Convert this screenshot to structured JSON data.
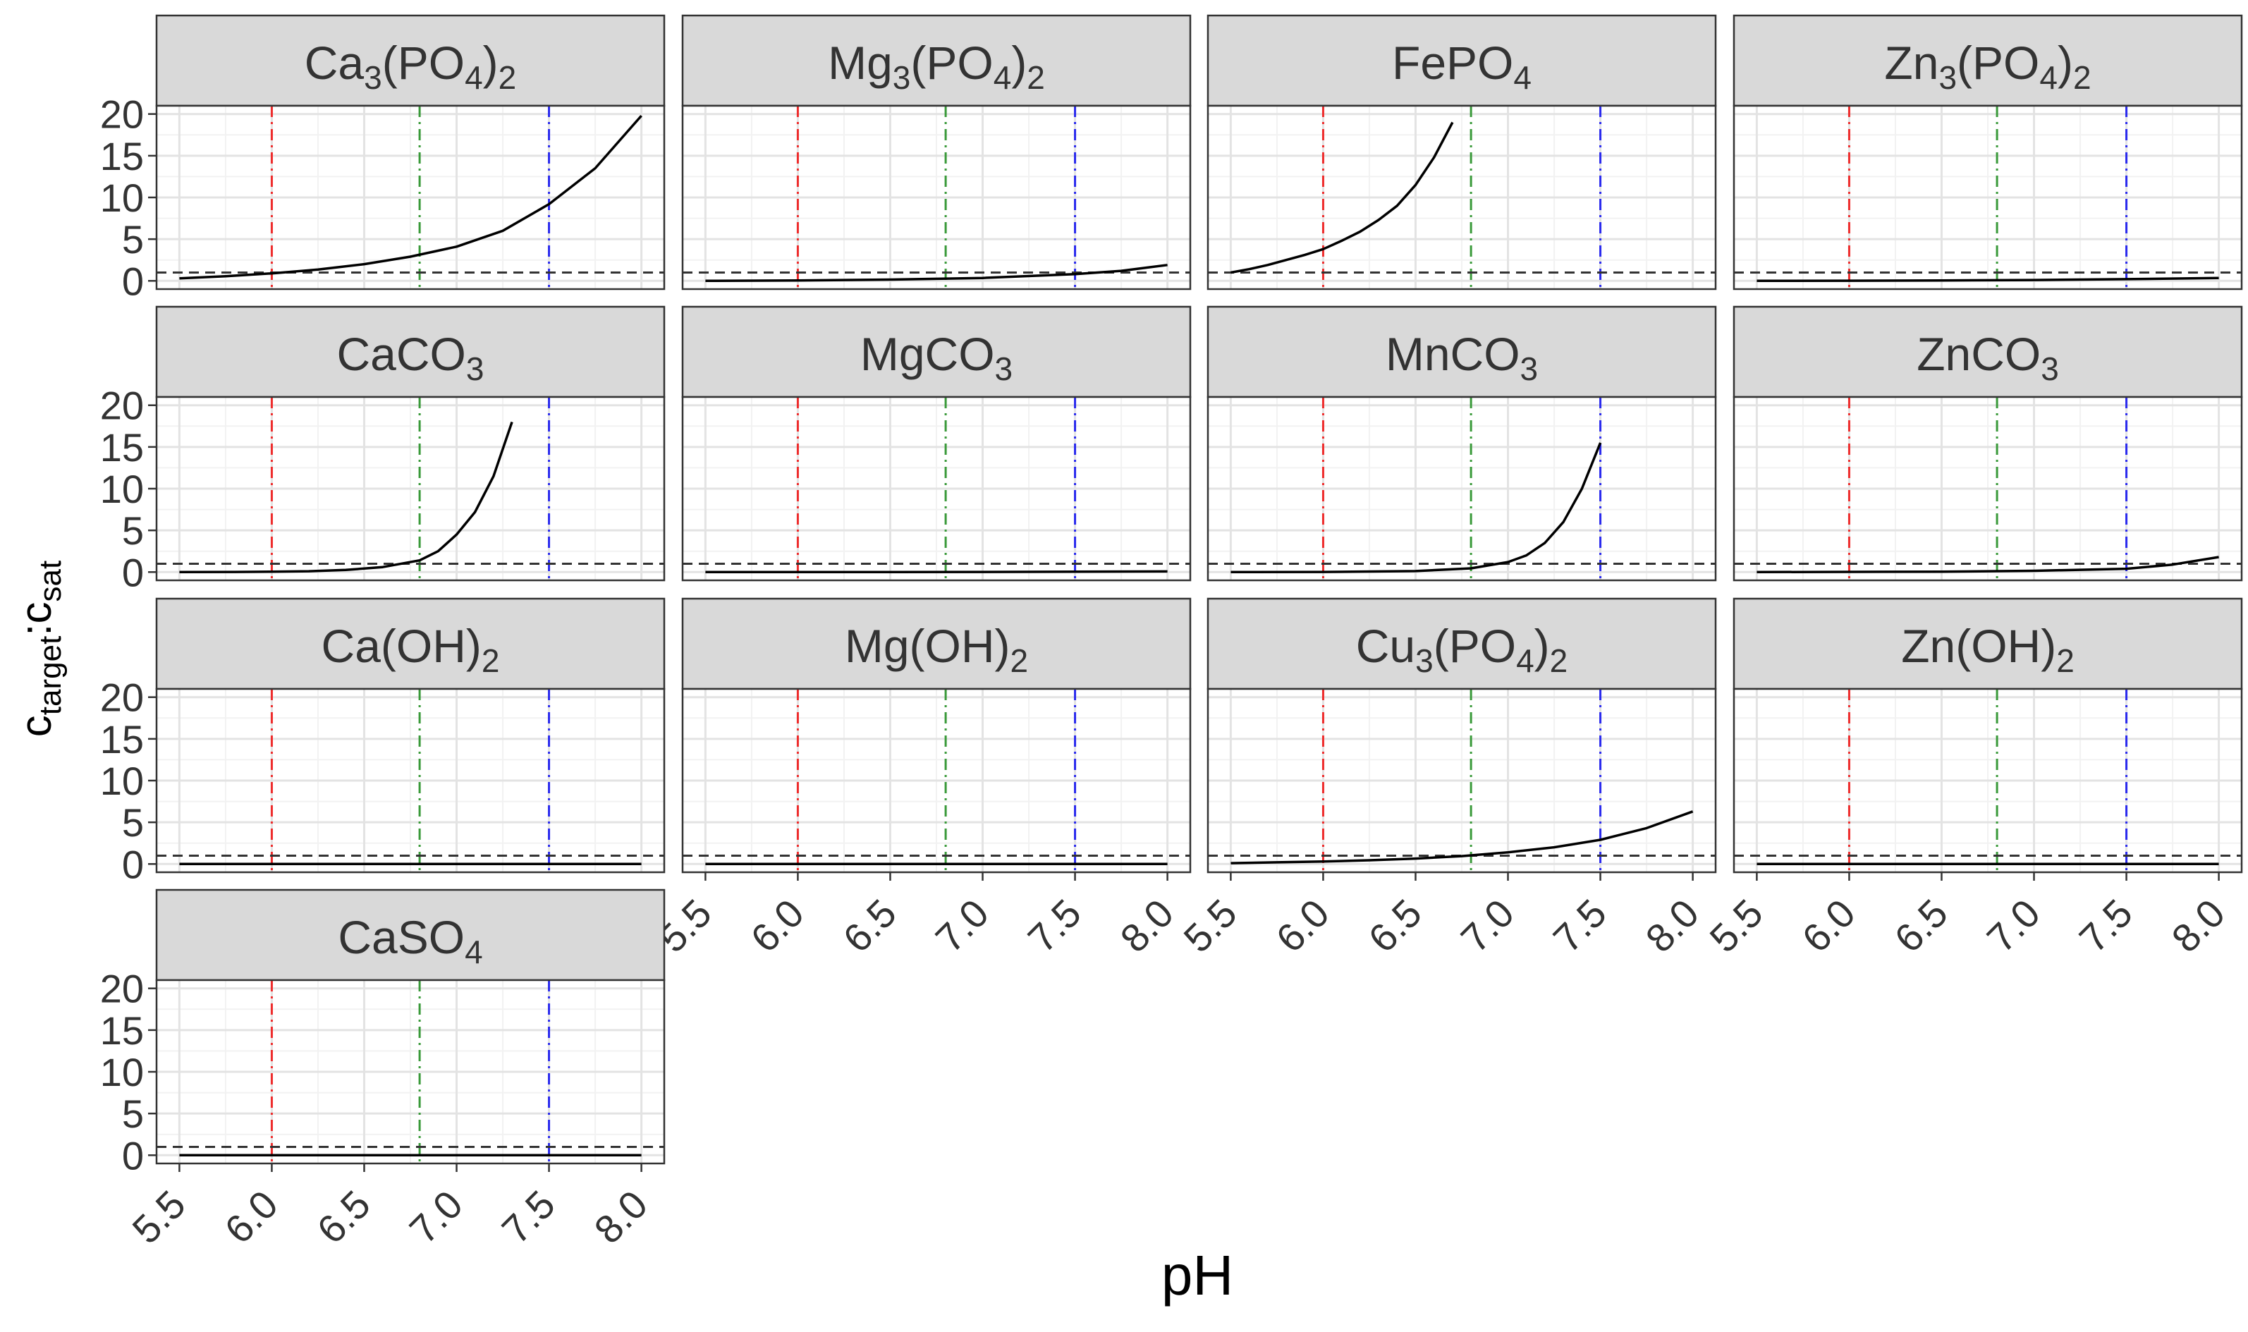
{
  "chart_data": {
    "type": "line",
    "layout": "facet-grid",
    "xlabel": "pH",
    "ylabel": {
      "main": "c",
      "sub1": "target",
      "sep": ":",
      "main2": "c",
      "sub2": "sat"
    },
    "xlim": [
      5.5,
      8.0
    ],
    "ylim": [
      0,
      20
    ],
    "xticks": [
      "5.5",
      "6.0",
      "6.5",
      "7.0",
      "7.5",
      "8.0"
    ],
    "yticks": [
      "0",
      "5",
      "10",
      "15",
      "20"
    ],
    "grid": true,
    "reference_line_y": 1,
    "vertical_lines": [
      {
        "x": 6.0,
        "color": "#ee2c2c"
      },
      {
        "x": 6.8,
        "color": "#3a9a3a"
      },
      {
        "x": 7.5,
        "color": "#2a2aee"
      }
    ],
    "line_color": "#000000",
    "facets": [
      {
        "title": [
          {
            "t": "Ca"
          },
          {
            "t": "3",
            "sub": true
          },
          {
            "t": "(PO"
          },
          {
            "t": "4",
            "sub": true
          },
          {
            "t": ")"
          },
          {
            "t": "2",
            "sub": true
          }
        ],
        "x": [
          5.5,
          5.75,
          6.0,
          6.25,
          6.5,
          6.75,
          7.0,
          7.25,
          7.5,
          7.75,
          8.0
        ],
        "y": [
          0.3,
          0.55,
          0.9,
          1.35,
          2.0,
          2.9,
          4.1,
          6.0,
          9.2,
          13.5,
          19.8
        ]
      },
      {
        "title": [
          {
            "t": "Mg"
          },
          {
            "t": "3",
            "sub": true
          },
          {
            "t": "(PO"
          },
          {
            "t": "4",
            "sub": true
          },
          {
            "t": ")"
          },
          {
            "t": "2",
            "sub": true
          }
        ],
        "x": [
          5.5,
          6.0,
          6.5,
          7.0,
          7.5,
          7.75,
          8.0
        ],
        "y": [
          0.0,
          0.05,
          0.15,
          0.35,
          0.8,
          1.2,
          1.9
        ]
      },
      {
        "title": [
          {
            "t": "FePO"
          },
          {
            "t": "4",
            "sub": true
          }
        ],
        "x": [
          5.5,
          5.6,
          5.7,
          5.8,
          5.9,
          6.0,
          6.1,
          6.2,
          6.3,
          6.4,
          6.5,
          6.6,
          6.7
        ],
        "y": [
          1.0,
          1.4,
          1.9,
          2.5,
          3.1,
          3.8,
          4.8,
          5.9,
          7.3,
          9.0,
          11.5,
          14.8,
          19.0
        ]
      },
      {
        "title": [
          {
            "t": "Zn"
          },
          {
            "t": "3",
            "sub": true
          },
          {
            "t": "(PO"
          },
          {
            "t": "4",
            "sub": true
          },
          {
            "t": ")"
          },
          {
            "t": "2",
            "sub": true
          }
        ],
        "x": [
          5.5,
          6.0,
          6.5,
          7.0,
          7.5,
          8.0
        ],
        "y": [
          0.0,
          0.02,
          0.05,
          0.1,
          0.2,
          0.35
        ]
      },
      {
        "title": [
          {
            "t": "CaCO"
          },
          {
            "t": "3",
            "sub": true
          }
        ],
        "x": [
          5.5,
          5.8,
          6.0,
          6.2,
          6.4,
          6.6,
          6.8,
          6.9,
          7.0,
          7.1,
          7.2,
          7.3
        ],
        "y": [
          0.0,
          0.02,
          0.05,
          0.1,
          0.25,
          0.6,
          1.4,
          2.5,
          4.5,
          7.2,
          11.5,
          18.0
        ]
      },
      {
        "title": [
          {
            "t": "MgCO"
          },
          {
            "t": "3",
            "sub": true
          }
        ],
        "x": [
          5.5,
          6.0,
          6.5,
          7.0,
          7.5,
          8.0
        ],
        "y": [
          0.0,
          0.0,
          0.01,
          0.02,
          0.04,
          0.08
        ]
      },
      {
        "title": [
          {
            "t": "MnCO"
          },
          {
            "t": "3",
            "sub": true
          }
        ],
        "x": [
          5.5,
          6.0,
          6.5,
          6.8,
          7.0,
          7.1,
          7.2,
          7.3,
          7.4,
          7.5
        ],
        "y": [
          0.0,
          0.02,
          0.12,
          0.45,
          1.2,
          2.0,
          3.5,
          6.0,
          10.0,
          15.5
        ]
      },
      {
        "title": [
          {
            "t": "ZnCO"
          },
          {
            "t": "3",
            "sub": true
          }
        ],
        "x": [
          5.5,
          6.5,
          7.0,
          7.5,
          7.75,
          8.0
        ],
        "y": [
          0.0,
          0.05,
          0.15,
          0.4,
          0.9,
          1.8
        ]
      },
      {
        "title": [
          {
            "t": "Ca(OH)"
          },
          {
            "t": "2",
            "sub": true
          }
        ],
        "x": [
          5.5,
          8.0
        ],
        "y": [
          0.0,
          0.0
        ]
      },
      {
        "title": [
          {
            "t": "Mg(OH)"
          },
          {
            "t": "2",
            "sub": true
          }
        ],
        "x": [
          5.5,
          8.0
        ],
        "y": [
          0.0,
          0.0
        ]
      },
      {
        "title": [
          {
            "t": "Cu"
          },
          {
            "t": "3",
            "sub": true
          },
          {
            "t": "(PO"
          },
          {
            "t": "4",
            "sub": true
          },
          {
            "t": ")"
          },
          {
            "t": "2",
            "sub": true
          }
        ],
        "x": [
          5.5,
          5.75,
          6.0,
          6.25,
          6.5,
          6.75,
          7.0,
          7.25,
          7.5,
          7.75,
          8.0
        ],
        "y": [
          0.1,
          0.2,
          0.3,
          0.45,
          0.65,
          0.95,
          1.4,
          2.0,
          2.9,
          4.3,
          6.3
        ]
      },
      {
        "title": [
          {
            "t": "Zn(OH)"
          },
          {
            "t": "2",
            "sub": true
          }
        ],
        "x": [
          5.5,
          8.0
        ],
        "y": [
          0.0,
          0.0
        ]
      },
      {
        "title": [
          {
            "t": "CaSO"
          },
          {
            "t": "4",
            "sub": true
          }
        ],
        "x": [
          5.5,
          8.0
        ],
        "y": [
          0.0,
          0.0
        ]
      }
    ]
  }
}
